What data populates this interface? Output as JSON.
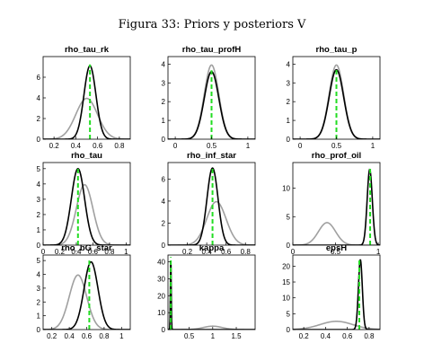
{
  "figure": {
    "title": "Figura 33: Priors y posteriors V"
  },
  "colors": {
    "prior": "#a0a0a0",
    "posterior": "#000000",
    "mode": "#22dd22"
  },
  "chart_data": [
    {
      "type": "line",
      "title": "rho_tau_rk",
      "xlim": [
        0.1,
        0.9
      ],
      "ylim": [
        0,
        8
      ],
      "xticks": [
        {
          "v": 0.2,
          "l": "0.2"
        },
        {
          "v": 0.4,
          "l": "0.4"
        },
        {
          "v": 0.6,
          "l": "0.6"
        },
        {
          "v": 0.8,
          "l": "0.8"
        }
      ],
      "yticks": [
        {
          "v": 0,
          "l": "0"
        },
        {
          "v": 2,
          "l": "2"
        },
        {
          "v": 4,
          "l": "4"
        },
        {
          "v": 6,
          "l": "6"
        }
      ],
      "prior": {
        "mu": 0.5,
        "sd": 0.1,
        "peak": 3.95
      },
      "posterior": {
        "mu": 0.53,
        "sd": 0.055,
        "peak": 7.1
      },
      "mode": 0.53
    },
    {
      "type": "line",
      "title": "rho_tau_profH",
      "xlim": [
        -0.1,
        1.1
      ],
      "ylim": [
        0,
        4.4
      ],
      "xticks": [
        {
          "v": 0,
          "l": "0"
        },
        {
          "v": 0.5,
          "l": "0.5"
        },
        {
          "v": 1,
          "l": "1"
        }
      ],
      "yticks": [
        {
          "v": 0,
          "l": "0"
        },
        {
          "v": 1,
          "l": "1"
        },
        {
          "v": 2,
          "l": "2"
        },
        {
          "v": 3,
          "l": "3"
        },
        {
          "v": 4,
          "l": "4"
        }
      ],
      "prior": {
        "mu": 0.5,
        "sd": 0.1,
        "peak": 3.95
      },
      "posterior": {
        "mu": 0.5,
        "sd": 0.1,
        "peak": 3.6
      },
      "mode": 0.5
    },
    {
      "type": "line",
      "title": "rho_tau_p",
      "xlim": [
        -0.1,
        1.1
      ],
      "ylim": [
        0,
        4.4
      ],
      "xticks": [
        {
          "v": 0,
          "l": "0"
        },
        {
          "v": 0.5,
          "l": "0.5"
        },
        {
          "v": 1,
          "l": "1"
        }
      ],
      "yticks": [
        {
          "v": 0,
          "l": "0"
        },
        {
          "v": 1,
          "l": "1"
        },
        {
          "v": 2,
          "l": "2"
        },
        {
          "v": 3,
          "l": "3"
        },
        {
          "v": 4,
          "l": "4"
        }
      ],
      "prior": {
        "mu": 0.5,
        "sd": 0.1,
        "peak": 3.95
      },
      "posterior": {
        "mu": 0.5,
        "sd": 0.1,
        "peak": 3.7
      },
      "mode": 0.5
    },
    {
      "type": "line",
      "title": "rho_tau",
      "xlim": [
        0,
        1.05
      ],
      "ylim": [
        0,
        5.4
      ],
      "xticks": [
        {
          "v": 0,
          "l": "0"
        },
        {
          "v": 0.2,
          "l": "0.2"
        },
        {
          "v": 0.4,
          "l": "0.4"
        },
        {
          "v": 0.6,
          "l": "0.6"
        },
        {
          "v": 0.8,
          "l": "0.8"
        },
        {
          "v": 1,
          "l": "1"
        }
      ],
      "yticks": [
        {
          "v": 0,
          "l": "0"
        },
        {
          "v": 1,
          "l": "1"
        },
        {
          "v": 2,
          "l": "2"
        },
        {
          "v": 3,
          "l": "3"
        },
        {
          "v": 4,
          "l": "4"
        },
        {
          "v": 5,
          "l": "5"
        }
      ],
      "prior": {
        "mu": 0.5,
        "sd": 0.1,
        "peak": 3.95
      },
      "posterior": {
        "mu": 0.42,
        "sd": 0.08,
        "peak": 5.0
      },
      "mode": 0.42
    },
    {
      "type": "line",
      "title": "rho_inf_star",
      "xlim": [
        0,
        0.9
      ],
      "ylim": [
        0,
        7.5
      ],
      "xticks": [
        {
          "v": 0.2,
          "l": "0.2"
        },
        {
          "v": 0.4,
          "l": "0.4"
        },
        {
          "v": 0.6,
          "l": "0.6"
        },
        {
          "v": 0.8,
          "l": "0.8"
        }
      ],
      "yticks": [
        {
          "v": 0,
          "l": "0"
        },
        {
          "v": 2,
          "l": "2"
        },
        {
          "v": 4,
          "l": "4"
        },
        {
          "v": 6,
          "l": "6"
        }
      ],
      "prior": {
        "mu": 0.5,
        "sd": 0.1,
        "peak": 3.95
      },
      "posterior": {
        "mu": 0.46,
        "sd": 0.057,
        "peak": 7.0
      },
      "mode": 0.46
    },
    {
      "type": "line",
      "title": "rho_prof_oil",
      "xlim": [
        0,
        1.02
      ],
      "ylim": [
        0,
        14.5
      ],
      "xticks": [
        {
          "v": 0,
          "l": "0"
        },
        {
          "v": 0.5,
          "l": "0.5"
        },
        {
          "v": 1,
          "l": "1"
        }
      ],
      "yticks": [
        {
          "v": 0,
          "l": "0"
        },
        {
          "v": 5,
          "l": "5"
        },
        {
          "v": 10,
          "l": "10"
        }
      ],
      "prior": {
        "mu": 0.4,
        "sd": 0.1,
        "peak": 3.95
      },
      "posterior": {
        "mu": 0.9,
        "sd": 0.03,
        "peak": 13.3
      },
      "mode": 0.905
    },
    {
      "type": "line",
      "title": "rho_bG_star",
      "xlim": [
        0.1,
        1.1
      ],
      "ylim": [
        0,
        5.4
      ],
      "xticks": [
        {
          "v": 0.2,
          "l": "0.2"
        },
        {
          "v": 0.4,
          "l": "0.4"
        },
        {
          "v": 0.6,
          "l": "0.6"
        },
        {
          "v": 0.8,
          "l": "0.8"
        },
        {
          "v": 1,
          "l": "1"
        }
      ],
      "yticks": [
        {
          "v": 0,
          "l": "0"
        },
        {
          "v": 1,
          "l": "1"
        },
        {
          "v": 2,
          "l": "2"
        },
        {
          "v": 3,
          "l": "3"
        },
        {
          "v": 4,
          "l": "4"
        },
        {
          "v": 5,
          "l": "5"
        }
      ],
      "prior": {
        "mu": 0.5,
        "sd": 0.1,
        "peak": 3.95
      },
      "posterior": {
        "mu": 0.65,
        "sd": 0.08,
        "peak": 4.9
      },
      "mode": 0.63
    },
    {
      "type": "line",
      "title": "kappa",
      "xlim": [
        0.05,
        1.9
      ],
      "ylim": [
        0,
        44
      ],
      "xticks": [
        {
          "v": 0.5,
          "l": "0.5"
        },
        {
          "v": 1,
          "l": "1"
        },
        {
          "v": 1.5,
          "l": "1.5"
        }
      ],
      "yticks": [
        {
          "v": 0,
          "l": "0"
        },
        {
          "v": 10,
          "l": "10"
        },
        {
          "v": 20,
          "l": "20"
        },
        {
          "v": 30,
          "l": "30"
        },
        {
          "v": 40,
          "l": "40"
        }
      ],
      "prior": {
        "mu": 1.0,
        "sd": 0.2,
        "peak": 2.0
      },
      "posterior": {
        "mu": 0.11,
        "sd": 0.009,
        "peak": 42
      },
      "mode": 0.11
    },
    {
      "type": "line",
      "title": "epsH",
      "xlim": [
        0.1,
        0.9
      ],
      "ylim": [
        0,
        23.5
      ],
      "xticks": [
        {
          "v": 0.2,
          "l": "0.2"
        },
        {
          "v": 0.4,
          "l": "0.4"
        },
        {
          "v": 0.6,
          "l": "0.6"
        },
        {
          "v": 0.8,
          "l": "0.8"
        }
      ],
      "yticks": [
        {
          "v": 0,
          "l": "0"
        },
        {
          "v": 5,
          "l": "5"
        },
        {
          "v": 10,
          "l": "10"
        },
        {
          "v": 15,
          "l": "15"
        },
        {
          "v": 20,
          "l": "20"
        }
      ],
      "prior": {
        "mu": 0.5,
        "sd": 0.15,
        "peak": 2.6
      },
      "posterior": {
        "mu": 0.72,
        "sd": 0.018,
        "peak": 22
      },
      "mode": 0.71
    }
  ]
}
